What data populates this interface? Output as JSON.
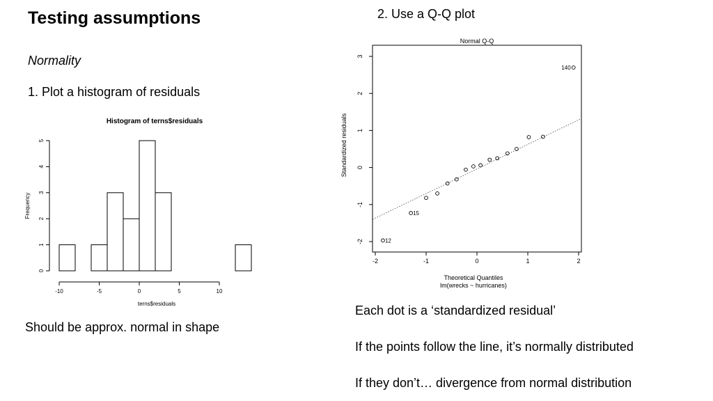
{
  "slide": {
    "title": "Testing assumptions",
    "subtitle": "Normality",
    "step1": "1. Plot a histogram of residuals",
    "step2": "2. Use a Q-Q plot",
    "histogram_note": "Should be approx. normal in shape",
    "qq_notes": [
      "Each dot is a ‘standardized residual’",
      "If the points follow the line, it’s normally distributed",
      "If they don’t… divergence from normal distribution"
    ]
  },
  "chart_data": [
    {
      "type": "bar",
      "title": "Histogram of terns$residuals",
      "xlabel": "terns$residuals",
      "ylabel": "Frequency",
      "bin_edges": [
        -10,
        -8,
        -6,
        -4,
        -2,
        0,
        2,
        4,
        6,
        8,
        10,
        12,
        14
      ],
      "values": [
        1,
        0,
        1,
        3,
        2,
        5,
        3,
        0,
        0,
        0,
        0,
        1
      ],
      "xticks": [
        -10,
        -5,
        0,
        5,
        10
      ],
      "yticks": [
        0,
        1,
        2,
        3,
        4,
        5
      ],
      "xlim": [
        -10,
        14
      ],
      "ylim": [
        0,
        5
      ]
    },
    {
      "type": "scatter",
      "title": "Normal Q-Q",
      "xlabel": "Theoretical Quantiles",
      "xlabel2": "lm(wrecks ~ hurricanes)",
      "ylabel": "Standardized residuals",
      "xticks": [
        -2,
        -1,
        0,
        1,
        2
      ],
      "yticks": [
        -2,
        -1,
        0,
        1,
        2,
        3
      ],
      "xlim": [
        -2.05,
        2.05
      ],
      "ylim": [
        -2.2,
        3.2
      ],
      "points": [
        {
          "x": -1.85,
          "y": -1.97,
          "label": "12"
        },
        {
          "x": -1.3,
          "y": -1.23,
          "label": "15"
        },
        {
          "x": -1.0,
          "y": -0.82
        },
        {
          "x": -0.78,
          "y": -0.7
        },
        {
          "x": -0.58,
          "y": -0.43
        },
        {
          "x": -0.4,
          "y": -0.32
        },
        {
          "x": -0.22,
          "y": -0.06
        },
        {
          "x": -0.07,
          "y": 0.03
        },
        {
          "x": 0.07,
          "y": 0.06
        },
        {
          "x": 0.25,
          "y": 0.21
        },
        {
          "x": 0.4,
          "y": 0.25
        },
        {
          "x": 0.6,
          "y": 0.38
        },
        {
          "x": 0.78,
          "y": 0.5
        },
        {
          "x": 1.02,
          "y": 0.82
        },
        {
          "x": 1.3,
          "y": 0.83
        },
        {
          "x": 1.9,
          "y": 2.7,
          "label": "140"
        }
      ],
      "reference_line": [
        {
          "x": -2.05,
          "y": -1.4
        },
        {
          "x": 2.05,
          "y": 1.32
        }
      ]
    }
  ]
}
